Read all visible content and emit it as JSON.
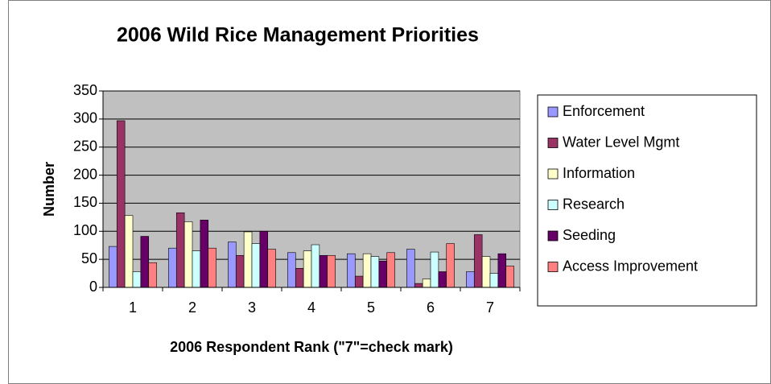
{
  "chart_data": {
    "type": "bar",
    "title": "2006 Wild Rice Management Priorities",
    "x_label": "2006 Respondent Rank (\"7\"=check mark)",
    "y_label": "Number",
    "categories": [
      "1",
      "2",
      "3",
      "4",
      "5",
      "6",
      "7"
    ],
    "series": [
      {
        "name": "Enforcement",
        "color": "#9999ff",
        "values": [
          73,
          70,
          81,
          62,
          60,
          68,
          28
        ]
      },
      {
        "name": "Water Level Mgmt",
        "color": "#993366",
        "values": [
          297,
          133,
          57,
          34,
          20,
          7,
          94
        ]
      },
      {
        "name": "Information",
        "color": "#ffffcc",
        "values": [
          128,
          117,
          99,
          65,
          60,
          15,
          55
        ]
      },
      {
        "name": "Research",
        "color": "#ccffff",
        "values": [
          28,
          65,
          78,
          76,
          55,
          63,
          25
        ]
      },
      {
        "name": "Seeding",
        "color": "#660066",
        "values": [
          91,
          120,
          100,
          57,
          47,
          28,
          60
        ]
      },
      {
        "name": "Access Improvement",
        "color": "#ff8080",
        "values": [
          44,
          70,
          68,
          57,
          62,
          78,
          38
        ]
      }
    ],
    "ylim": [
      0,
      350
    ],
    "yticks": [
      0,
      50,
      100,
      150,
      200,
      250,
      300,
      350
    ],
    "grid": true,
    "legend": "right",
    "plot_background": "#c0c0c0"
  }
}
